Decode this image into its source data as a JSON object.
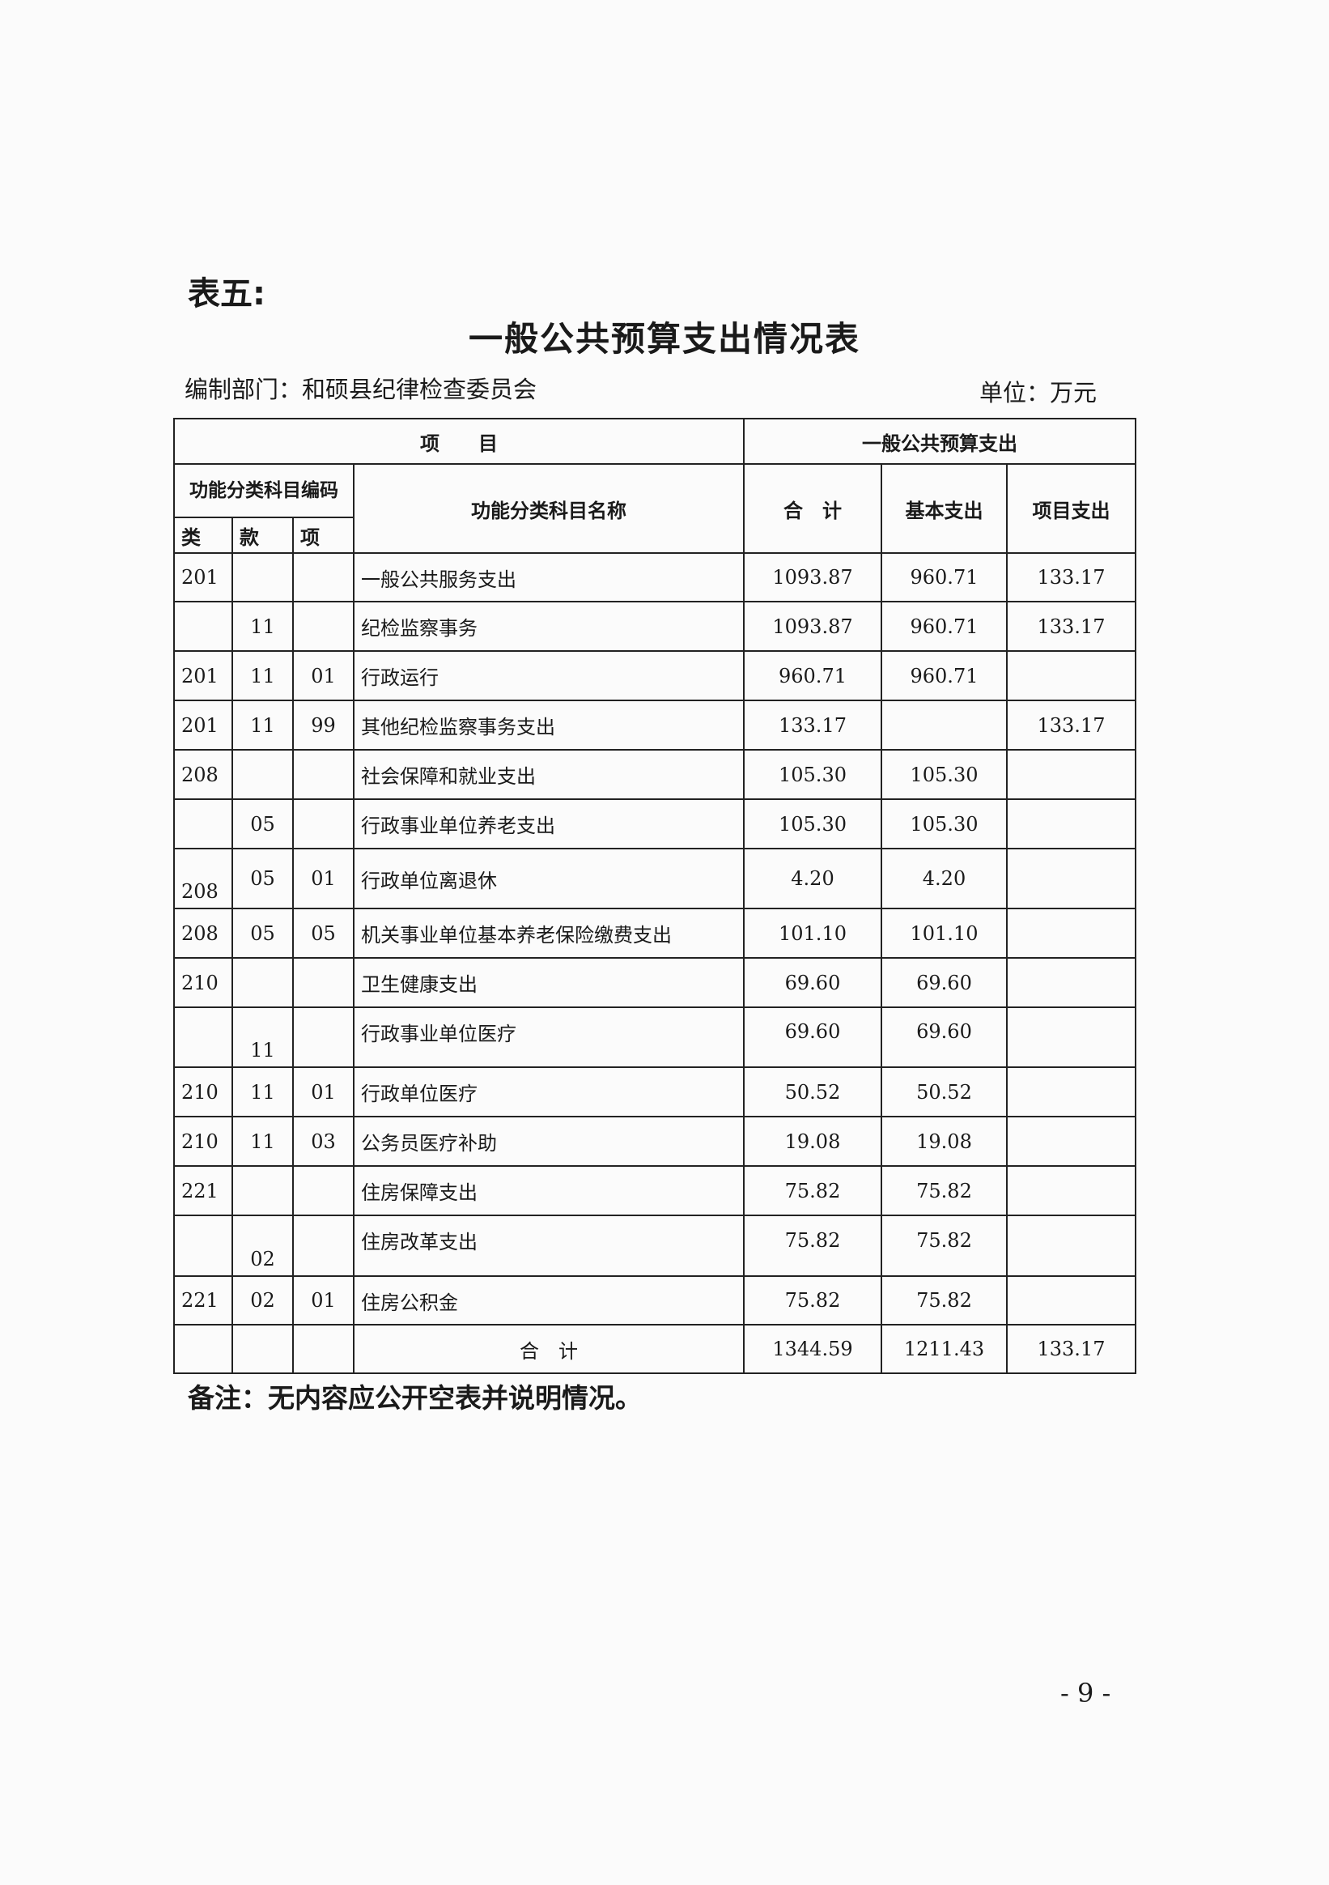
{
  "doc": {
    "label": "表五:",
    "title": "一般公共预算支出情况表",
    "dept": "编制部门：和硕县纪律检查委员会",
    "unit": "单位：万元",
    "note": "备注：无内容应公开空表并说明情况。",
    "page_number": "- 9 -"
  },
  "table": {
    "header": {
      "item": "项　　目",
      "budget": "一般公共预算支出",
      "code": "功能分类科目编码",
      "lei": "类",
      "kuan": "款",
      "xiang": "项",
      "name": "功能分类科目名称",
      "total": "合　计",
      "basic": "基本支出",
      "project": "项目支出"
    },
    "rows": [
      {
        "lei": "201",
        "kuan": "",
        "xiang": "",
        "name": "一般公共服务支出",
        "total": "1093.87",
        "basic": "960.71",
        "project": "133.17"
      },
      {
        "lei": "",
        "kuan": "11",
        "xiang": "",
        "name": "纪检监察事务",
        "total": "1093.87",
        "basic": "960.71",
        "project": "133.17"
      },
      {
        "lei": "201",
        "kuan": "11",
        "xiang": "01",
        "name": "行政运行",
        "total": "960.71",
        "basic": "960.71",
        "project": ""
      },
      {
        "lei": "201",
        "kuan": "11",
        "xiang": "99",
        "name": "其他纪检监察事务支出",
        "total": "133.17",
        "basic": "",
        "project": "133.17"
      },
      {
        "lei": "208",
        "kuan": "",
        "xiang": "",
        "name": "社会保障和就业支出",
        "total": "105.30",
        "basic": "105.30",
        "project": ""
      },
      {
        "lei": "",
        "kuan": "05",
        "xiang": "",
        "name": "行政事业单位养老支出",
        "total": "105.30",
        "basic": "105.30",
        "project": ""
      },
      {
        "lei": "208",
        "kuan": "05",
        "xiang": "01",
        "name": "行政单位离退休",
        "total": "4.20",
        "basic": "4.20",
        "project": ""
      },
      {
        "lei": "208",
        "kuan": "05",
        "xiang": "05",
        "name": "机关事业单位基本养老保险缴费支出",
        "total": "101.10",
        "basic": "101.10",
        "project": ""
      },
      {
        "lei": "210",
        "kuan": "",
        "xiang": "",
        "name": "卫生健康支出",
        "total": "69.60",
        "basic": "69.60",
        "project": ""
      },
      {
        "lei": "",
        "kuan": "11",
        "xiang": "",
        "name": "行政事业单位医疗",
        "total": "69.60",
        "basic": "69.60",
        "project": ""
      },
      {
        "lei": "210",
        "kuan": "11",
        "xiang": "01",
        "name": "行政单位医疗",
        "total": "50.52",
        "basic": "50.52",
        "project": ""
      },
      {
        "lei": "210",
        "kuan": "11",
        "xiang": "03",
        "name": "公务员医疗补助",
        "total": "19.08",
        "basic": "19.08",
        "project": ""
      },
      {
        "lei": "221",
        "kuan": "",
        "xiang": "",
        "name": "住房保障支出",
        "total": "75.82",
        "basic": "75.82",
        "project": ""
      },
      {
        "lei": "",
        "kuan": "02",
        "xiang": "",
        "name": "住房改革支出",
        "total": "75.82",
        "basic": "75.82",
        "project": ""
      },
      {
        "lei": "221",
        "kuan": "02",
        "xiang": "01",
        "name": "住房公积金",
        "total": "75.82",
        "basic": "75.82",
        "project": ""
      }
    ],
    "total_row": {
      "label": "合　计",
      "total": "1344.59",
      "basic": "1211.43",
      "project": "133.17"
    }
  }
}
